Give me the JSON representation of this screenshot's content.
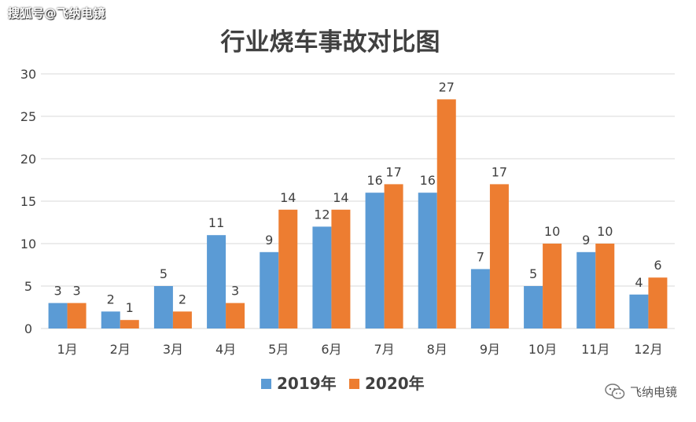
{
  "watermark_top": "搜狐号@飞纳电镜",
  "watermark_bottom": "飞纳电镜",
  "colors": {
    "series_2019": "#5B9BD5",
    "series_2020": "#ED7D31",
    "grid": "#D9D9D9",
    "text": "#404040"
  },
  "chart_data": {
    "type": "bar",
    "title": "行业烧车事故对比图",
    "categories": [
      "1月",
      "2月",
      "3月",
      "4月",
      "5月",
      "6月",
      "7月",
      "8月",
      "9月",
      "10月",
      "11月",
      "12月"
    ],
    "series": [
      {
        "name": "2019年",
        "values": [
          3,
          2,
          5,
          11,
          9,
          12,
          16,
          16,
          7,
          5,
          9,
          4
        ]
      },
      {
        "name": "2020年",
        "values": [
          3,
          1,
          2,
          3,
          14,
          14,
          17,
          27,
          17,
          10,
          10,
          6
        ]
      }
    ],
    "ylim": [
      0,
      30
    ],
    "yticks": [
      0,
      5,
      10,
      15,
      20,
      25,
      30
    ],
    "grid": true,
    "legend": "bottom"
  }
}
